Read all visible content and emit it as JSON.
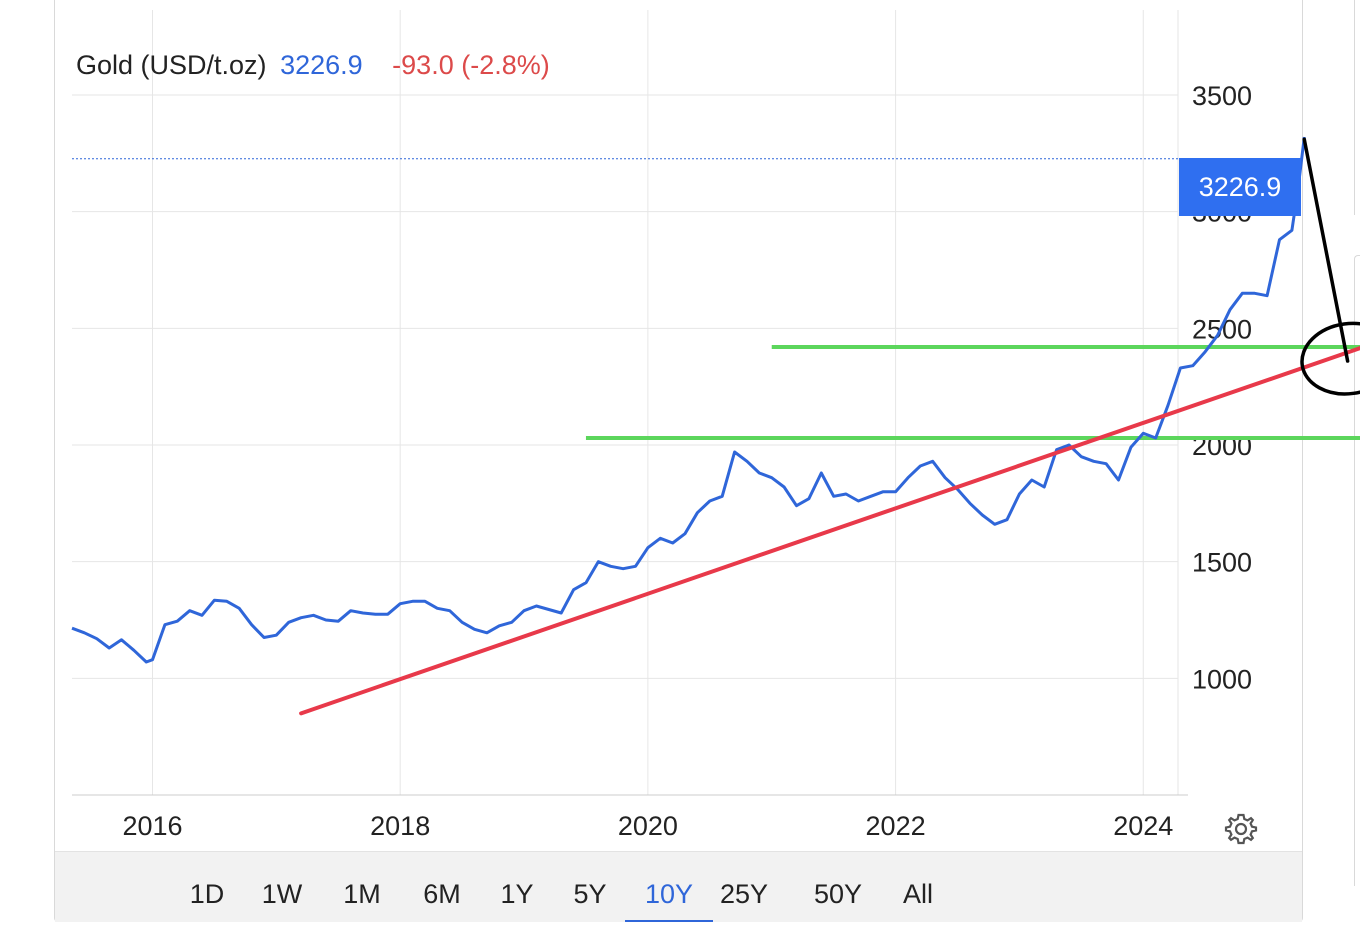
{
  "header": {
    "instrument": "Gold (USD/t.oz)",
    "price": "3226.9",
    "change": "-93.0 (-2.8%)"
  },
  "last_price_badge": "3226.9",
  "range_buttons": [
    {
      "label": "1D",
      "active": false
    },
    {
      "label": "1W",
      "active": false
    },
    {
      "label": "1M",
      "active": false
    },
    {
      "label": "6M",
      "active": false
    },
    {
      "label": "1Y",
      "active": false
    },
    {
      "label": "5Y",
      "active": false
    },
    {
      "label": "10Y",
      "active": true
    },
    {
      "label": "25Y",
      "active": false
    },
    {
      "label": "50Y",
      "active": false
    },
    {
      "label": "All",
      "active": false
    }
  ],
  "settings_icon": "gear-icon",
  "colors": {
    "price_line": "#2f66d9",
    "trend_line": "#e8394a",
    "support_lines": "#5cd65c",
    "annotation": "#000000",
    "negative_change": "#dc4a4a"
  },
  "chart_data": {
    "type": "line",
    "title": "Gold (USD/t.oz)",
    "xlabel": "",
    "ylabel": "",
    "xlim": [
      2015.35,
      2025.75
    ],
    "ylim": [
      500,
      3800
    ],
    "x_ticks": [
      "2016",
      "2018",
      "2020",
      "2022",
      "2024"
    ],
    "y_ticks": [
      "1000",
      "1500",
      "2000",
      "2500",
      "3000",
      "3500"
    ],
    "grid": true,
    "series": [
      {
        "name": "",
        "x": [
          2015.35,
          2015.45,
          2015.55,
          2015.65,
          2015.75,
          2015.85,
          2015.95,
          2016.0,
          2016.1,
          2016.2,
          2016.3,
          2016.4,
          2016.5,
          2016.6,
          2016.7,
          2016.8,
          2016.9,
          2017.0,
          2017.1,
          2017.2,
          2017.3,
          2017.4,
          2017.5,
          2017.6,
          2017.7,
          2017.8,
          2017.9,
          2018.0,
          2018.1,
          2018.2,
          2018.3,
          2018.4,
          2018.5,
          2018.6,
          2018.7,
          2018.8,
          2018.9,
          2019.0,
          2019.1,
          2019.2,
          2019.3,
          2019.4,
          2019.5,
          2019.6,
          2019.7,
          2019.8,
          2019.9,
          2020.0,
          2020.1,
          2020.2,
          2020.3,
          2020.4,
          2020.5,
          2020.6,
          2020.7,
          2020.8,
          2020.9,
          2021.0,
          2021.1,
          2021.2,
          2021.3,
          2021.4,
          2021.5,
          2021.6,
          2021.7,
          2021.8,
          2021.9,
          2022.0,
          2022.1,
          2022.2,
          2022.3,
          2022.4,
          2022.5,
          2022.6,
          2022.7,
          2022.8,
          2022.9,
          2023.0,
          2023.1,
          2023.2,
          2023.3,
          2023.4,
          2023.5,
          2023.6,
          2023.7,
          2023.8,
          2023.9,
          2024.0,
          2024.1,
          2024.2,
          2024.3,
          2024.4,
          2024.5,
          2024.6,
          2024.7,
          2024.8,
          2024.9,
          2025.0,
          2025.1,
          2025.2,
          2025.25,
          2025.3
        ],
        "values": [
          1215,
          1195,
          1170,
          1130,
          1165,
          1120,
          1070,
          1080,
          1230,
          1245,
          1290,
          1270,
          1335,
          1330,
          1300,
          1230,
          1175,
          1185,
          1240,
          1260,
          1270,
          1250,
          1245,
          1290,
          1280,
          1275,
          1275,
          1320,
          1330,
          1330,
          1300,
          1290,
          1240,
          1210,
          1195,
          1225,
          1240,
          1290,
          1310,
          1295,
          1280,
          1380,
          1410,
          1500,
          1480,
          1470,
          1480,
          1560,
          1600,
          1580,
          1620,
          1710,
          1760,
          1780,
          1970,
          1930,
          1880,
          1860,
          1820,
          1740,
          1770,
          1880,
          1780,
          1790,
          1760,
          1780,
          1800,
          1800,
          1860,
          1910,
          1930,
          1860,
          1810,
          1750,
          1700,
          1660,
          1680,
          1790,
          1850,
          1820,
          1980,
          2000,
          1950,
          1930,
          1920,
          1850,
          1990,
          2050,
          2030,
          2170,
          2330,
          2340,
          2400,
          2470,
          2580,
          2650,
          2650,
          2640,
          2880,
          2920,
          3100,
          3320
        ]
      }
    ],
    "overlays": [
      {
        "type": "trend_line",
        "x": [
          2017.2,
          2025.75
        ],
        "y": [
          850,
          2415
        ]
      },
      {
        "type": "horizontal_line",
        "x": [
          2019.5,
          2025.75
        ],
        "y": 2030
      },
      {
        "type": "horizontal_line",
        "x": [
          2021.0,
          2025.75
        ],
        "y": 2420
      },
      {
        "type": "arrow_line",
        "x": [
          2025.3,
          2025.65
        ],
        "y": [
          3310,
          2360
        ]
      },
      {
        "type": "ellipse",
        "cx": 2025.66,
        "cy": 2370,
        "rx": 0.38,
        "ry": 150
      },
      {
        "type": "last_price_line",
        "y": 3226.9
      }
    ]
  }
}
